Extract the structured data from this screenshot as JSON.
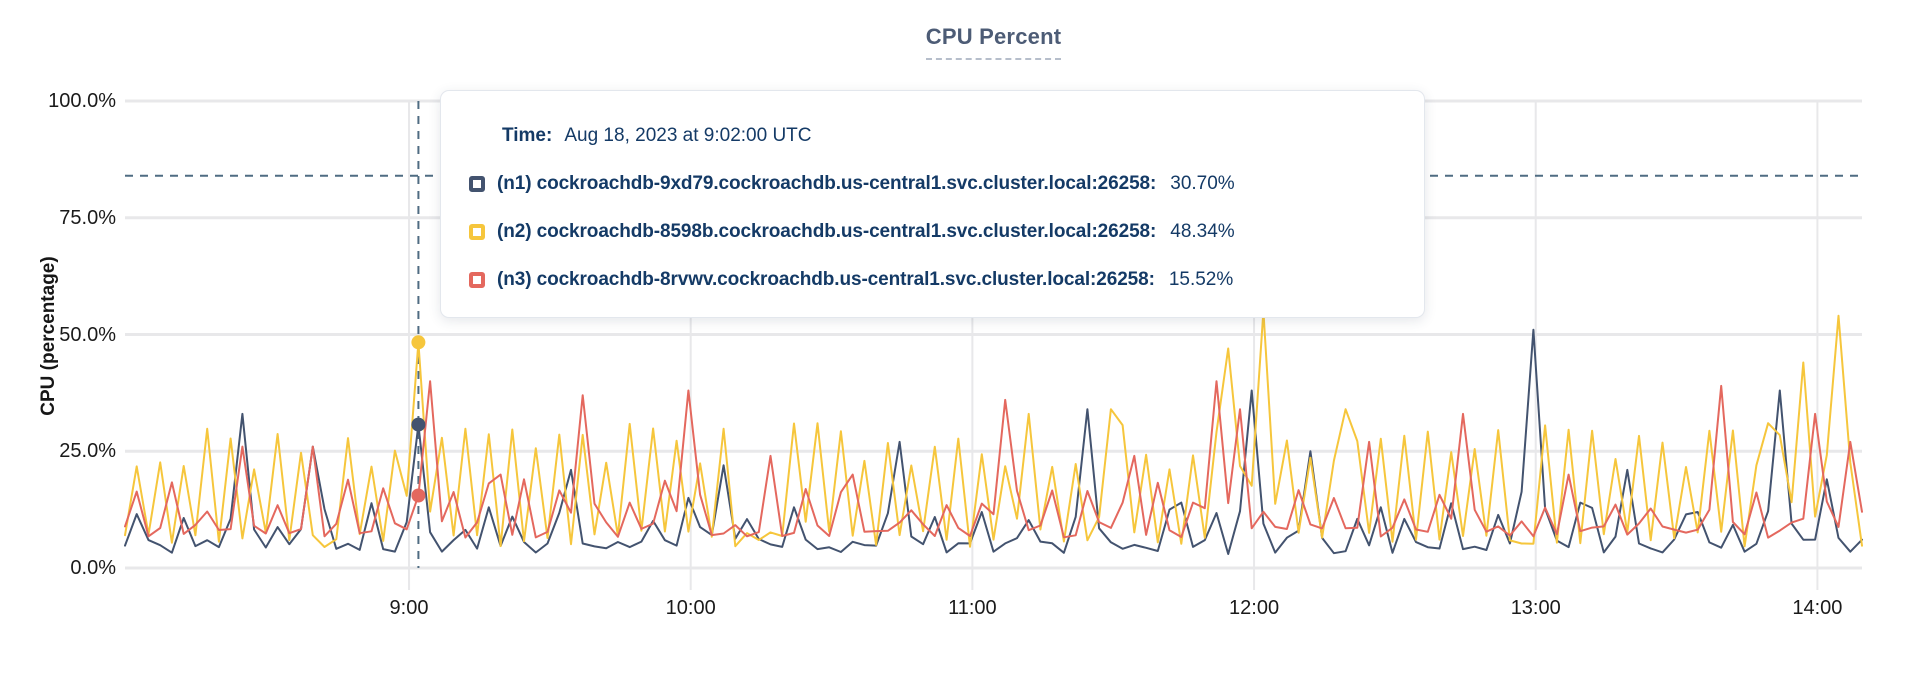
{
  "header": {
    "title": "CPU Percent"
  },
  "tooltip": {
    "time_label": "Time:",
    "time_value": "Aug 18, 2023 at 9:02:00 UTC"
  },
  "colors": {
    "title": "#4D5C76",
    "tooltip_text": "#143A66",
    "grid": "#E8E8EA",
    "crosshair": "#4F6C82",
    "axis_text": "#1A1A1A"
  },
  "chart_data": {
    "type": "line",
    "title": "CPU Percent",
    "ylabel": "CPU (percentage)",
    "ylim": [
      0,
      100
    ],
    "grid": true,
    "legend_position": "hover-tooltip",
    "x_range_min": [
      479.5,
      849.5
    ],
    "step_min": 2.5,
    "yticks": [
      {
        "value": 0,
        "label": "0.0%"
      },
      {
        "value": 25,
        "label": "25.0%"
      },
      {
        "value": 50,
        "label": "50.0%"
      },
      {
        "value": 75,
        "label": "75.0%"
      },
      {
        "value": 100,
        "label": "100.0%"
      }
    ],
    "xticks": [
      {
        "minute": 540,
        "label": "9:00"
      },
      {
        "minute": 600,
        "label": "10:00"
      },
      {
        "minute": 660,
        "label": "11:00"
      },
      {
        "minute": 720,
        "label": "12:00"
      },
      {
        "minute": 780,
        "label": "13:00"
      },
      {
        "minute": 840,
        "label": "14:00"
      }
    ],
    "hover": {
      "minute": 542,
      "crosshair_value_pct": 84
    },
    "series": [
      {
        "id": "n1",
        "label": "(n1) cockroachdb-9xd79.cockroachdb.us-central1.svc.cluster.local:26258:",
        "hover_value_pct": 30.7,
        "hover_value_text": "30.70%",
        "color": "#43536F",
        "base_range_pct": [
          3,
          6.5
        ],
        "minor_spikes": {
          "period_min": 10,
          "range_pct": [
            8,
            14
          ],
          "skip": 0.15
        },
        "major_spikes_min_pct": [
          [
            505,
            33
          ],
          [
            520,
            26
          ],
          [
            542,
            30.7
          ],
          [
            557.5,
            13
          ],
          [
            575,
            21
          ],
          [
            600,
            15
          ],
          [
            607.5,
            22
          ],
          [
            622.5,
            13
          ],
          [
            645,
            27
          ],
          [
            662.5,
            12
          ],
          [
            685,
            34
          ],
          [
            705,
            14
          ],
          [
            719,
            38
          ],
          [
            733,
            25
          ],
          [
            747.5,
            13
          ],
          [
            780,
            51
          ],
          [
            790,
            14
          ],
          [
            800,
            21
          ],
          [
            815,
            12
          ],
          [
            832.5,
            38
          ],
          [
            842.5,
            19
          ]
        ]
      },
      {
        "id": "n2",
        "label": "(n2) cockroachdb-8598b.cockroachdb.us-central1.svc.cluster.local:26258:",
        "hover_value_pct": 48.34,
        "hover_value_text": "48.34%",
        "color": "#F6C63C",
        "base_range_pct": [
          4.5,
          8
        ],
        "minor_spikes": {
          "period_min": 5,
          "range_pct": [
            21,
            31
          ],
          "skip": 0.1
        },
        "major_spikes_min_pct": [
          [
            542,
            48.34
          ],
          [
            627.5,
            31
          ],
          [
            672.5,
            33
          ],
          [
            690,
            34
          ],
          [
            715,
            47
          ],
          [
            722.5,
            55
          ],
          [
            740,
            34
          ],
          [
            830,
            31
          ],
          [
            837.5,
            44
          ],
          [
            845,
            54
          ]
        ]
      },
      {
        "id": "n3",
        "label": "(n3) cockroachdb-8rvwv.cockroachdb.us-central1.svc.cluster.local:26258:",
        "hover_value_pct": 15.52,
        "hover_value_text": "15.52%",
        "color": "#E4685E",
        "base_range_pct": [
          6.5,
          10
        ],
        "minor_spikes": {
          "period_min": 7.5,
          "range_pct": [
            12,
            19
          ],
          "skip": 0.15
        },
        "major_spikes_min_pct": [
          [
            505,
            26
          ],
          [
            520,
            26
          ],
          [
            542,
            15.52
          ],
          [
            544.5,
            40
          ],
          [
            560,
            20
          ],
          [
            577.5,
            37
          ],
          [
            600,
            38
          ],
          [
            617.5,
            24
          ],
          [
            635,
            20
          ],
          [
            667.5,
            36
          ],
          [
            695,
            24
          ],
          [
            712.5,
            40
          ],
          [
            716,
            34
          ],
          [
            745,
            27
          ],
          [
            765,
            33
          ],
          [
            787.5,
            20
          ],
          [
            820,
            39
          ],
          [
            840,
            33
          ],
          [
            847.5,
            27
          ]
        ]
      }
    ]
  }
}
